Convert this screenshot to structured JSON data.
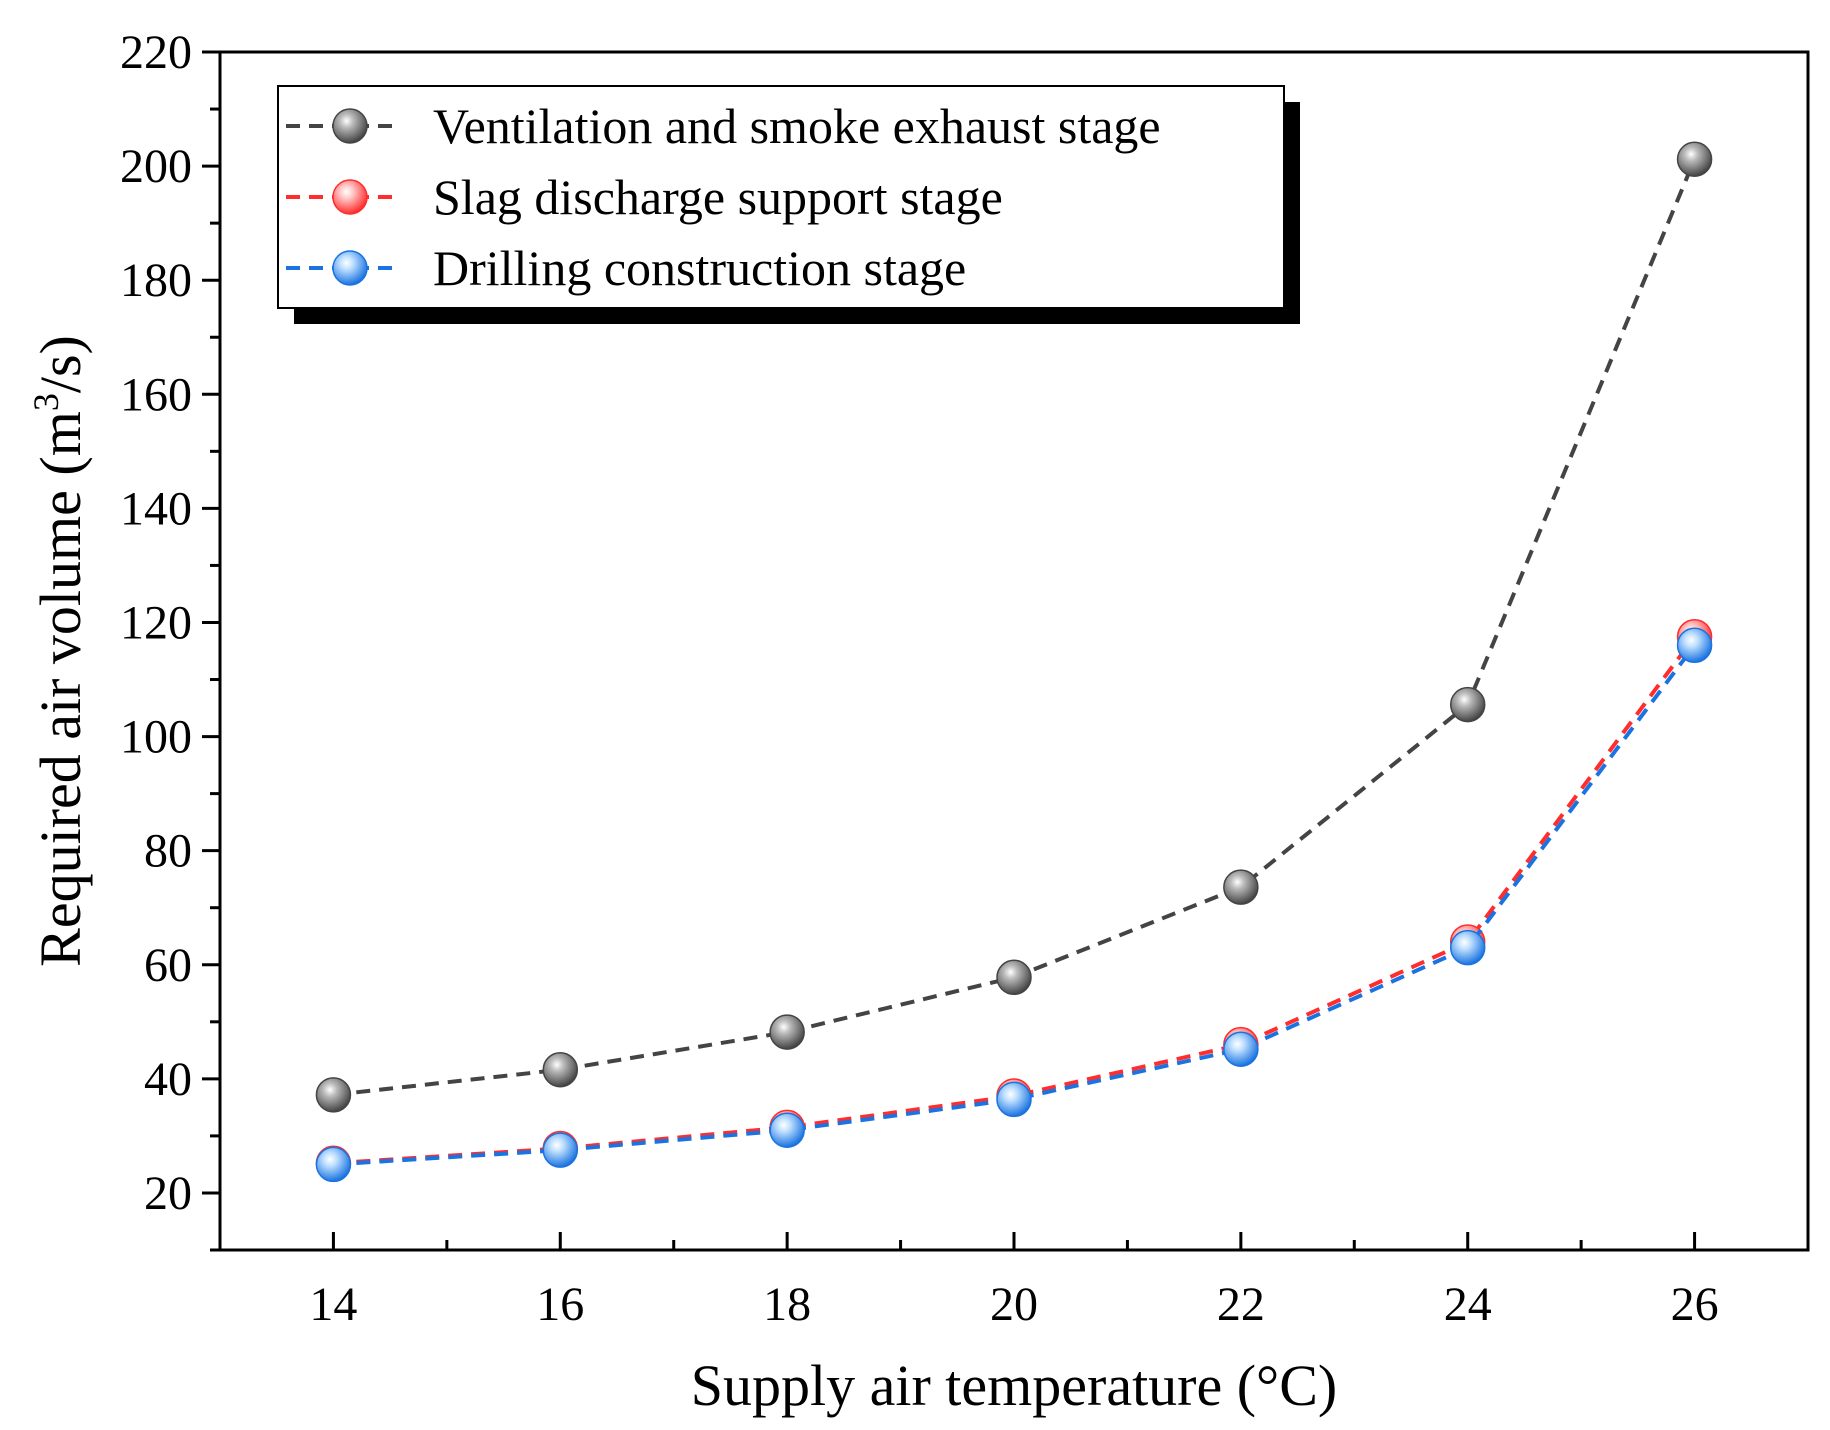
{
  "chart_data": {
    "type": "line",
    "xlabel": "Supply air temperature (°C)",
    "ylabel": "Required air volume (m³/s)",
    "ylabel_parts": {
      "main": "Required air volume (m",
      "sup": "3",
      "end": "/s)"
    },
    "xlim": [
      13,
      27
    ],
    "ylim": [
      10,
      220
    ],
    "x": [
      14,
      16,
      18,
      20,
      22,
      24,
      26
    ],
    "x_ticks": [
      14,
      16,
      18,
      20,
      22,
      24,
      26
    ],
    "y_ticks": [
      20,
      40,
      60,
      80,
      100,
      120,
      140,
      160,
      180,
      200,
      220
    ],
    "grid": false,
    "legend_position": "top-left",
    "series": [
      {
        "name": "Ventilation and smoke exhaust stage",
        "values": [
          37.2,
          41.6,
          48.2,
          57.8,
          73.6,
          105.6,
          201.2
        ],
        "color": "#444444",
        "highlight": "#bbbbbb"
      },
      {
        "name": "Slag discharge support stage",
        "values": [
          25.2,
          27.8,
          31.5,
          37.0,
          46.0,
          64.0,
          117.5
        ],
        "color": "#ff2d2d",
        "highlight": "#ffc8c8"
      },
      {
        "name": "Drilling construction stage",
        "values": [
          25.0,
          27.5,
          31.0,
          36.4,
          45.2,
          63.0,
          116.0
        ],
        "color": "#1a73e0",
        "highlight": "#bfe0ff"
      }
    ]
  }
}
